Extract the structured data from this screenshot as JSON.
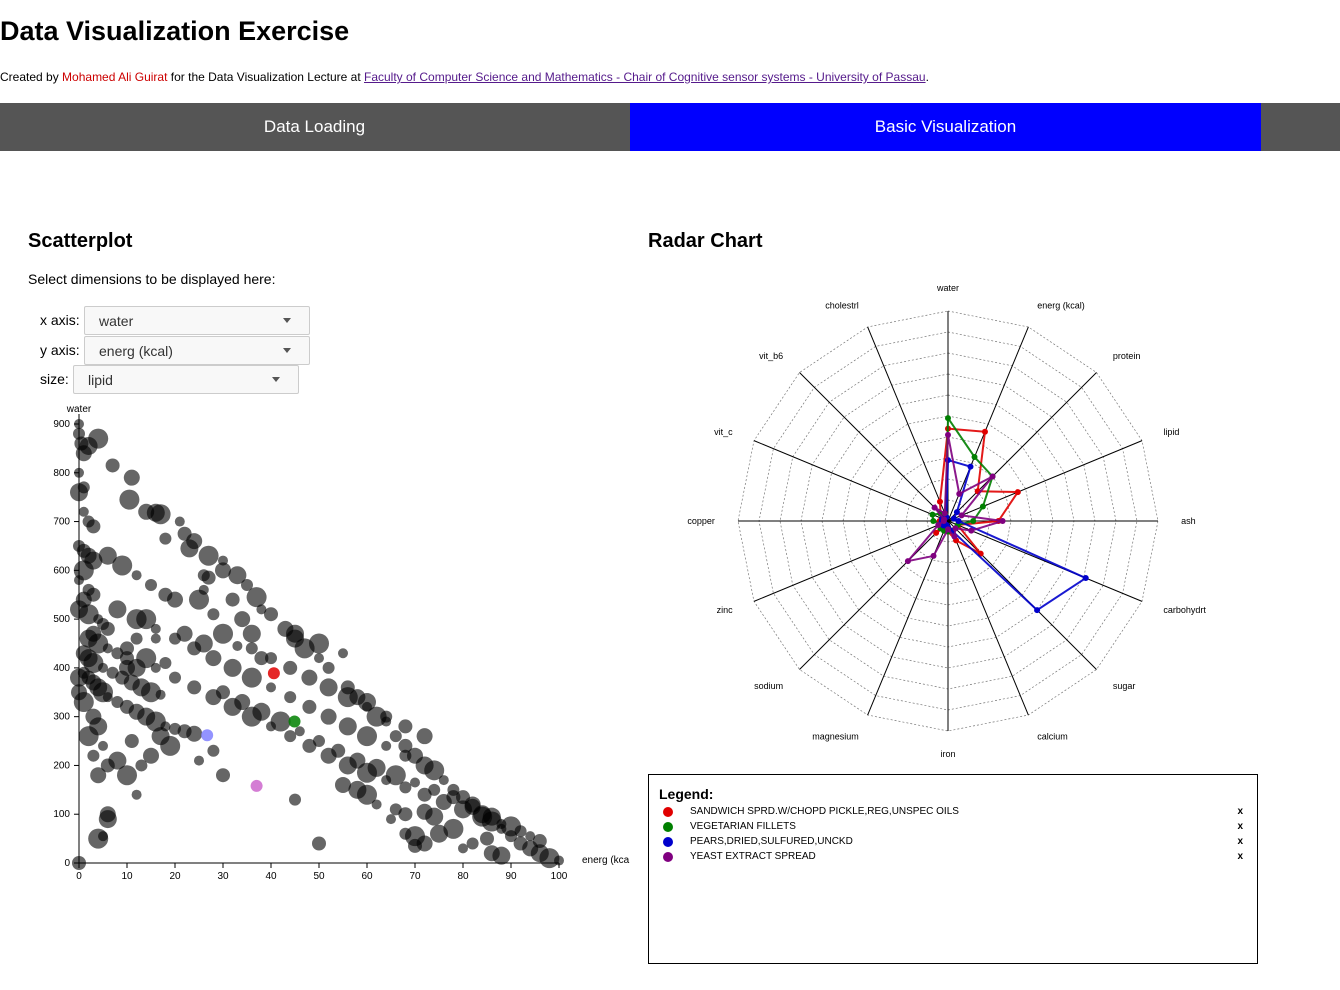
{
  "page": {
    "title": "Data Visualization Exercise",
    "credit_prefix": "Created by ",
    "author": "Mohamed Ali Guirat",
    "credit_middle": " for the Data Visualization Lecture at ",
    "link_text": "Faculty of Computer Science and Mathematics - Chair of Cognitive sensor systems - University of Passau",
    "credit_suffix": "."
  },
  "tabs": [
    {
      "label": "Data Loading",
      "active": false
    },
    {
      "label": "Basic Visualization",
      "active": true
    }
  ],
  "scatter_section": {
    "title": "Scatterplot",
    "hint": "Select dimensions to be displayed here:",
    "x_label": "x axis:",
    "x_value": "water",
    "y_label": "y axis:",
    "y_value": "energ (kcal)",
    "size_label": "size:",
    "size_value": "lipid"
  },
  "radar_section": {
    "title": "Radar Chart"
  },
  "legend": {
    "title": "Legend:",
    "remove_label": "x",
    "items": [
      {
        "name": "SANDWICH SPRD.W/CHOPD PICKLE,REG,UNSPEC OILS",
        "color": "#e00000"
      },
      {
        "name": "VEGETARIAN FILLETS",
        "color": "#008000"
      },
      {
        "name": "PEARS,DRIED,SULFURED,UNCKD",
        "color": "#0000cc"
      },
      {
        "name": "YEAST EXTRACT SPREAD",
        "color": "#800080"
      }
    ]
  },
  "chart_data": [
    {
      "type": "scatter",
      "title": "",
      "xlabel": "energ (kca",
      "ylabel": "water",
      "xlim": [
        0,
        100
      ],
      "ylim": [
        0,
        900
      ],
      "x_ticks": [
        0,
        10,
        20,
        30,
        40,
        50,
        60,
        70,
        80,
        90,
        100
      ],
      "y_ticks": [
        0,
        100,
        200,
        300,
        400,
        500,
        600,
        700,
        800,
        900
      ],
      "point_color": "#000000",
      "series": [
        {
          "name": "SANDWICH SPRD.W/CHOPD PICKLE,REG,UNSPEC OILS",
          "color": "#e00000",
          "points": [
            [
              40.6,
              389
            ]
          ]
        },
        {
          "name": "VEGETARIAN FILLETS",
          "color": "#008000",
          "points": [
            [
              44.9,
              290
            ]
          ]
        },
        {
          "name": "PEARS,DRIED,SULFURED,UNCKD",
          "color": "#8080ff",
          "points": [
            [
              26.7,
              262
            ]
          ]
        },
        {
          "name": "YEAST EXTRACT SPREAD",
          "color": "#cc66cc",
          "points": [
            [
              37,
              158
            ]
          ]
        }
      ],
      "background_points": [
        [
          0,
          900
        ],
        [
          0,
          880
        ],
        [
          0.5,
          860
        ],
        [
          1,
          840
        ],
        [
          2,
          855
        ],
        [
          4,
          870
        ],
        [
          0,
          800
        ],
        [
          1,
          770
        ],
        [
          7,
          815
        ],
        [
          11,
          790
        ],
        [
          0,
          760
        ],
        [
          10.5,
          745
        ],
        [
          1,
          720
        ],
        [
          2,
          700
        ],
        [
          3,
          690
        ],
        [
          14,
          720
        ],
        [
          16,
          718
        ],
        [
          17,
          715
        ],
        [
          21,
          700
        ],
        [
          18,
          665
        ],
        [
          22,
          675
        ],
        [
          24,
          660
        ],
        [
          23,
          645
        ],
        [
          27,
          630
        ],
        [
          30,
          620
        ],
        [
          26,
          590
        ],
        [
          27,
          585
        ],
        [
          30,
          600
        ],
        [
          33,
          590
        ],
        [
          37,
          545
        ],
        [
          38,
          520
        ],
        [
          35,
          570
        ],
        [
          40,
          510
        ],
        [
          43,
          480
        ],
        [
          45,
          460
        ],
        [
          47,
          440
        ],
        [
          50,
          420
        ],
        [
          52,
          400
        ],
        [
          56,
          360
        ],
        [
          58,
          340
        ],
        [
          60,
          330
        ],
        [
          62,
          300
        ],
        [
          64,
          290
        ],
        [
          66,
          260
        ],
        [
          68,
          240
        ],
        [
          70,
          220
        ],
        [
          72,
          200
        ],
        [
          74,
          190
        ],
        [
          76,
          170
        ],
        [
          78,
          150
        ],
        [
          80,
          135
        ],
        [
          82,
          120
        ],
        [
          84,
          100
        ],
        [
          86,
          85
        ],
        [
          88,
          70
        ],
        [
          90,
          55
        ],
        [
          92,
          40
        ],
        [
          94,
          30
        ],
        [
          96,
          20
        ],
        [
          98,
          10
        ],
        [
          100,
          5
        ],
        [
          0,
          650
        ],
        [
          1,
          640
        ],
        [
          2,
          630
        ],
        [
          3,
          620
        ],
        [
          1,
          600
        ],
        [
          0,
          580
        ],
        [
          2,
          560
        ],
        [
          3,
          550
        ],
        [
          1,
          540
        ],
        [
          0,
          520
        ],
        [
          2,
          510
        ],
        [
          4,
          500
        ],
        [
          5,
          490
        ],
        [
          6,
          480
        ],
        [
          3,
          470
        ],
        [
          2,
          460
        ],
        [
          4,
          450
        ],
        [
          6,
          440
        ],
        [
          8,
          430
        ],
        [
          10,
          420
        ],
        [
          1,
          430
        ],
        [
          2,
          420
        ],
        [
          3,
          410
        ],
        [
          5,
          400
        ],
        [
          7,
          390
        ],
        [
          9,
          380
        ],
        [
          11,
          370
        ],
        [
          13,
          360
        ],
        [
          15,
          350
        ],
        [
          17,
          345
        ],
        [
          1,
          390
        ],
        [
          2,
          380
        ],
        [
          3,
          370
        ],
        [
          4,
          360
        ],
        [
          5,
          350
        ],
        [
          6,
          340
        ],
        [
          8,
          330
        ],
        [
          10,
          320
        ],
        [
          12,
          310
        ],
        [
          14,
          300
        ],
        [
          16,
          290
        ],
        [
          18,
          280
        ],
        [
          20,
          275
        ],
        [
          22,
          270
        ],
        [
          24,
          265
        ],
        [
          6,
          630
        ],
        [
          9,
          610
        ],
        [
          12,
          590
        ],
        [
          15,
          570
        ],
        [
          18,
          550
        ],
        [
          20,
          540
        ],
        [
          8,
          520
        ],
        [
          12,
          500
        ],
        [
          16,
          480
        ],
        [
          20,
          460
        ],
        [
          24,
          440
        ],
        [
          28,
          420
        ],
        [
          32,
          400
        ],
        [
          36,
          380
        ],
        [
          40,
          360
        ],
        [
          44,
          340
        ],
        [
          48,
          320
        ],
        [
          52,
          300
        ],
        [
          56,
          280
        ],
        [
          60,
          260
        ],
        [
          64,
          240
        ],
        [
          68,
          220
        ],
        [
          30,
          350
        ],
        [
          34,
          330
        ],
        [
          38,
          310
        ],
        [
          42,
          290
        ],
        [
          46,
          270
        ],
        [
          50,
          250
        ],
        [
          54,
          230
        ],
        [
          58,
          210
        ],
        [
          62,
          195
        ],
        [
          66,
          180
        ],
        [
          70,
          165
        ],
        [
          74,
          150
        ],
        [
          78,
          135
        ],
        [
          82,
          115
        ],
        [
          86,
          95
        ],
        [
          90,
          75
        ],
        [
          94,
          55
        ],
        [
          40,
          420
        ],
        [
          44,
          400
        ],
        [
          48,
          380
        ],
        [
          52,
          360
        ],
        [
          56,
          340
        ],
        [
          60,
          320
        ],
        [
          64,
          300
        ],
        [
          68,
          280
        ],
        [
          72,
          260
        ],
        [
          45,
          470
        ],
        [
          50,
          450
        ],
        [
          55,
          430
        ],
        [
          20,
          380
        ],
        [
          24,
          360
        ],
        [
          28,
          340
        ],
        [
          32,
          320
        ],
        [
          36,
          300
        ],
        [
          40,
          280
        ],
        [
          44,
          260
        ],
        [
          48,
          240
        ],
        [
          52,
          220
        ],
        [
          56,
          200
        ],
        [
          60,
          185
        ],
        [
          64,
          170
        ],
        [
          68,
          155
        ],
        [
          72,
          140
        ],
        [
          76,
          125
        ],
        [
          80,
          110
        ],
        [
          84,
          95
        ],
        [
          88,
          80
        ],
        [
          92,
          65
        ],
        [
          96,
          45
        ],
        [
          3,
          300
        ],
        [
          4,
          280
        ],
        [
          2,
          260
        ],
        [
          5,
          240
        ],
        [
          3,
          220
        ],
        [
          6,
          200
        ],
        [
          4,
          180
        ],
        [
          8,
          210
        ],
        [
          10,
          180
        ],
        [
          12,
          140
        ],
        [
          13,
          200
        ],
        [
          11,
          250
        ],
        [
          15,
          220
        ],
        [
          17,
          260
        ],
        [
          19,
          240
        ],
        [
          25,
          210
        ],
        [
          28,
          230
        ],
        [
          30,
          180
        ],
        [
          6,
          100
        ],
        [
          6,
          90
        ],
        [
          4,
          50
        ],
        [
          5,
          55
        ],
        [
          45,
          130
        ],
        [
          50,
          40
        ],
        [
          55,
          160
        ],
        [
          58,
          150
        ],
        [
          60,
          140
        ],
        [
          65,
          90
        ],
        [
          68,
          60
        ],
        [
          70,
          35
        ],
        [
          72,
          40
        ],
        [
          75,
          60
        ],
        [
          78,
          70
        ],
        [
          80,
          30
        ],
        [
          82,
          40
        ],
        [
          85,
          50
        ],
        [
          86,
          20
        ],
        [
          88,
          15
        ],
        [
          70,
          55
        ],
        [
          62,
          120
        ],
        [
          66,
          110
        ],
        [
          68,
          100
        ],
        [
          72,
          105
        ],
        [
          74,
          95
        ],
        [
          25,
          540
        ],
        [
          26,
          560
        ],
        [
          28,
          510
        ],
        [
          32,
          540
        ],
        [
          34,
          500
        ],
        [
          36,
          470
        ],
        [
          30,
          470
        ],
        [
          33,
          445
        ],
        [
          36,
          440
        ],
        [
          38,
          420
        ],
        [
          22,
          470
        ],
        [
          26,
          450
        ],
        [
          14,
          500
        ],
        [
          16,
          460
        ],
        [
          12,
          460
        ],
        [
          10,
          440
        ],
        [
          10,
          400
        ],
        [
          12,
          400
        ],
        [
          14,
          420
        ],
        [
          16,
          400
        ],
        [
          18,
          410
        ],
        [
          0,
          0
        ],
        [
          0,
          350
        ],
        [
          0,
          380
        ],
        [
          1,
          330
        ]
      ]
    },
    {
      "type": "radar",
      "axes": [
        "water",
        "energ (kcal)",
        "protein",
        "lipid",
        "ash",
        "carbohydrt",
        "sugar",
        "calcium",
        "iron",
        "magnesium",
        "sodium",
        "zinc",
        "copper",
        "vit_c",
        "vit_b6",
        "cholestrl"
      ],
      "range": [
        0,
        1
      ],
      "rings": 10,
      "series": [
        {
          "name": "SANDWICH SPRD.W/CHOPD PICKLE,REG,UNSPEC OILS",
          "color": "#e00000",
          "values": [
            0.44,
            0.46,
            0.2,
            0.36,
            0.24,
            0.05,
            0.22,
            0.1,
            0.05,
            0.03,
            0.08,
            0.02,
            0.04,
            0.03,
            0.05,
            0.1
          ]
        },
        {
          "name": "VEGETARIAN FILLETS",
          "color": "#008000",
          "values": [
            0.49,
            0.33,
            0.3,
            0.18,
            0.12,
            0.05,
            0.05,
            0.05,
            0.05,
            0.05,
            0.05,
            0.04,
            0.07,
            0.08,
            0.05,
            0.03
          ]
        },
        {
          "name": "PEARS,DRIED,SULFURED,UNCKD",
          "color": "#0000cc",
          "values": [
            0.29,
            0.28,
            0.06,
            0.03,
            0.05,
            0.71,
            0.6,
            0.05,
            0.03,
            0.02,
            0.03,
            0.02,
            0.03,
            0.03,
            0.02,
            0.02
          ]
        },
        {
          "name": "YEAST EXTRACT SPREAD",
          "color": "#800080",
          "values": [
            0.41,
            0.14,
            0.3,
            0.07,
            0.26,
            0.12,
            0.05,
            0.08,
            0.04,
            0.18,
            0.27,
            0.05,
            0.02,
            0.02,
            0.09,
            0.04
          ]
        }
      ]
    }
  ]
}
